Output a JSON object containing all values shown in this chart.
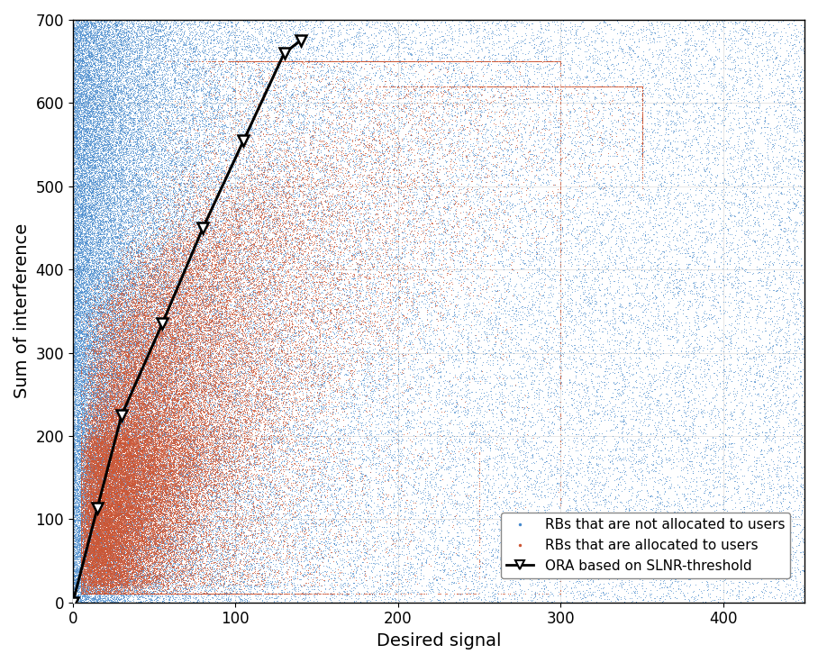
{
  "title": "",
  "xlabel": "Desired signal",
  "ylabel": "Sum of interference",
  "xlim": [
    0,
    450
  ],
  "ylim": [
    0,
    700
  ],
  "xticks": [
    0,
    100,
    200,
    300,
    400
  ],
  "yticks": [
    0,
    100,
    200,
    300,
    400,
    500,
    600,
    700
  ],
  "blue_color": "#4488CC",
  "red_color": "#CC5533",
  "ora_line_color": "#000000",
  "ora_x": [
    0,
    15,
    30,
    55,
    80,
    105,
    130,
    140
  ],
  "ora_y": [
    0,
    113,
    225,
    335,
    450,
    555,
    660,
    675
  ],
  "n_blue": 100000,
  "n_red": 80000,
  "legend_labels": [
    "RBs that are not allocated to users",
    "RBs that are allocated to users",
    "ORA based on SLNR-threshold"
  ],
  "blue_marker_size": 0.5,
  "red_marker_size": 0.5,
  "ora_marker_size": 9,
  "grid_alpha": 0.4,
  "xlabel_fontsize": 14,
  "ylabel_fontsize": 14,
  "legend_fontsize": 11
}
